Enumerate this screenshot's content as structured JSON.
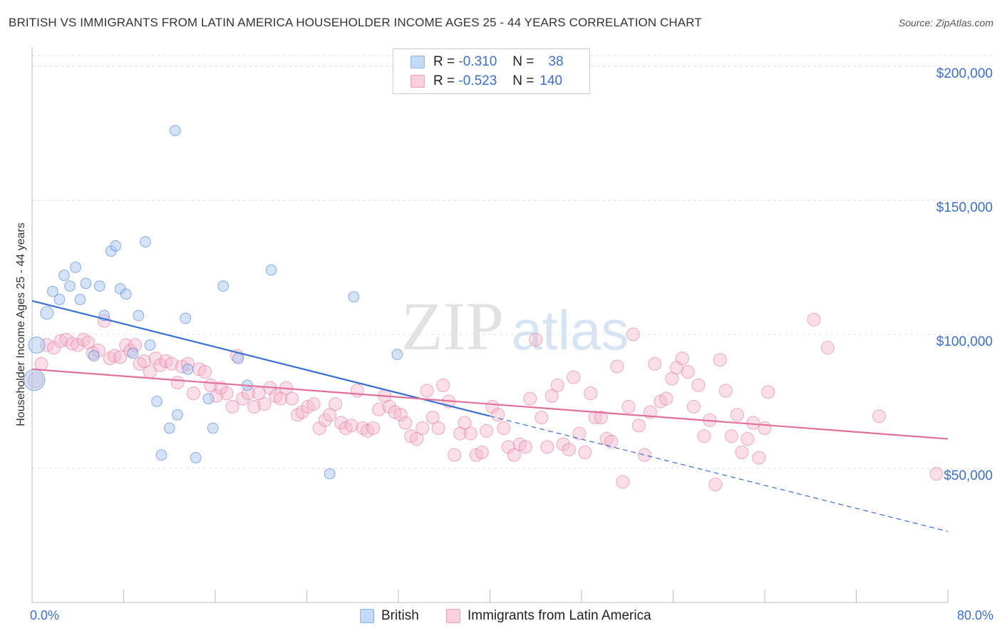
{
  "title": "BRITISH VS IMMIGRANTS FROM LATIN AMERICA HOUSEHOLDER INCOME AGES 25 - 44 YEARS CORRELATION CHART",
  "source": "Source: ZipAtlas.com",
  "watermark": {
    "zip": "ZIP",
    "atlas": "atlas"
  },
  "legend": {
    "rows": [
      {
        "r_label": "R =",
        "r_value": "-0.310",
        "n_label": "N =",
        "n_value": "38",
        "color": "#a9c8f0"
      },
      {
        "r_label": "R =",
        "r_value": "-0.523",
        "n_label": "N =",
        "n_value": "140",
        "color": "#f5b8cc"
      }
    ]
  },
  "bottom_legend": {
    "british": "British",
    "latin": "Immigrants from Latin America"
  },
  "chart_data": {
    "type": "scatter",
    "title": "BRITISH VS IMMIGRANTS FROM LATIN AMERICA HOUSEHOLDER INCOME AGES 25 - 44 YEARS CORRELATION CHART",
    "xlabel": "",
    "ylabel": "Householder Income Ages 25 - 44 years",
    "x_tick_labels": [
      "0.0%",
      "80.0%"
    ],
    "y_tick_labels": [
      "$50,000",
      "$100,000",
      "$150,000",
      "$200,000"
    ],
    "y_ticks": [
      50000,
      100000,
      150000,
      200000
    ],
    "xlim": [
      0,
      80
    ],
    "ylim": [
      0,
      205000
    ],
    "grid": true,
    "legend_position": "top-center",
    "colors": {
      "british": "#3a6fd0",
      "british_fill": "#a9c8f0",
      "latin": "#e0709a",
      "latin_fill": "#f5b8cc"
    },
    "series": [
      {
        "name": "British",
        "trend": {
          "x0": 0,
          "y0": 112500,
          "x1": 40,
          "y1": 69500,
          "dash_to_x": 80,
          "dash_to_y": 26500
        },
        "points": [
          [
            0.2,
            83000,
            18
          ],
          [
            0.4,
            96000,
            14
          ],
          [
            1.3,
            108000,
            11
          ],
          [
            1.8,
            116000,
            9
          ],
          [
            2.4,
            113000,
            9
          ],
          [
            2.8,
            122000,
            9
          ],
          [
            3.3,
            118000,
            9
          ],
          [
            3.8,
            125000,
            9
          ],
          [
            4.2,
            113000,
            9
          ],
          [
            4.7,
            119000,
            9
          ],
          [
            5.4,
            92000,
            9
          ],
          [
            5.9,
            118000,
            9
          ],
          [
            6.3,
            107000,
            9
          ],
          [
            6.9,
            131000,
            9
          ],
          [
            7.3,
            133000,
            9
          ],
          [
            7.7,
            117000,
            9
          ],
          [
            8.2,
            115000,
            9
          ],
          [
            8.8,
            93000,
            9
          ],
          [
            9.3,
            107000,
            9
          ],
          [
            9.9,
            134500,
            9
          ],
          [
            10.3,
            96000,
            9
          ],
          [
            10.9,
            75000,
            9
          ],
          [
            11.3,
            55000,
            9
          ],
          [
            12.0,
            65000,
            9
          ],
          [
            12.5,
            176000,
            9
          ],
          [
            12.7,
            70000,
            9
          ],
          [
            13.4,
            106000,
            9
          ],
          [
            13.6,
            87000,
            9
          ],
          [
            14.3,
            54000,
            9
          ],
          [
            15.4,
            76000,
            9
          ],
          [
            15.8,
            65000,
            9
          ],
          [
            16.7,
            118000,
            9
          ],
          [
            18.0,
            91000,
            9
          ],
          [
            18.8,
            81000,
            9
          ],
          [
            20.9,
            124000,
            9
          ],
          [
            26.0,
            48000,
            9
          ],
          [
            28.1,
            114000,
            9
          ],
          [
            31.9,
            92500,
            9
          ]
        ]
      },
      {
        "name": "Immigrants from Latin America",
        "trend": {
          "x0": 0,
          "y0": 87000,
          "x1": 80,
          "y1": 61000
        },
        "points": [
          [
            0.3,
            83000,
            13
          ],
          [
            0.8,
            89000,
            11
          ],
          [
            1.3,
            96000,
            11
          ],
          [
            1.9,
            95000,
            11
          ],
          [
            2.5,
            97500,
            11
          ],
          [
            3.0,
            98000,
            11
          ],
          [
            3.5,
            96500,
            11
          ],
          [
            4.0,
            96000,
            11
          ],
          [
            4.5,
            98000,
            11
          ],
          [
            4.9,
            97000,
            11
          ],
          [
            5.3,
            93000,
            11
          ],
          [
            5.8,
            94000,
            11
          ],
          [
            6.3,
            105000,
            11
          ],
          [
            6.8,
            91000,
            11
          ],
          [
            7.2,
            92000,
            11
          ],
          [
            7.7,
            91500,
            11
          ],
          [
            8.2,
            96000,
            11
          ],
          [
            8.6,
            94000,
            11
          ],
          [
            9.0,
            96000,
            11
          ],
          [
            9.4,
            89000,
            11
          ],
          [
            9.8,
            90000,
            11
          ],
          [
            10.3,
            86000,
            11
          ],
          [
            10.8,
            91000,
            11
          ],
          [
            11.2,
            88500,
            11
          ],
          [
            11.7,
            90000,
            11
          ],
          [
            12.2,
            89000,
            11
          ],
          [
            12.7,
            82000,
            11
          ],
          [
            13.1,
            88000,
            11
          ],
          [
            13.6,
            89000,
            11
          ],
          [
            14.1,
            78000,
            11
          ],
          [
            14.6,
            87000,
            11
          ],
          [
            15.1,
            86000,
            11
          ],
          [
            15.6,
            81000,
            11
          ],
          [
            16.1,
            77000,
            11
          ],
          [
            16.5,
            80000,
            11
          ],
          [
            17.0,
            78000,
            11
          ],
          [
            17.5,
            73000,
            11
          ],
          [
            17.9,
            92000,
            11
          ],
          [
            18.4,
            76000,
            11
          ],
          [
            18.9,
            78000,
            11
          ],
          [
            19.4,
            73000,
            11
          ],
          [
            19.8,
            78000,
            11
          ],
          [
            20.3,
            74000,
            11
          ],
          [
            20.8,
            80000,
            11
          ],
          [
            21.3,
            77000,
            11
          ],
          [
            21.7,
            76000,
            11
          ],
          [
            22.2,
            80000,
            11
          ],
          [
            22.7,
            76000,
            11
          ],
          [
            23.2,
            70000,
            11
          ],
          [
            23.6,
            71000,
            11
          ],
          [
            24.1,
            73000,
            11
          ],
          [
            24.6,
            74000,
            11
          ],
          [
            25.1,
            65000,
            11
          ],
          [
            25.6,
            68000,
            11
          ],
          [
            26.0,
            70000,
            11
          ],
          [
            26.5,
            74000,
            11
          ],
          [
            27.0,
            67000,
            11
          ],
          [
            27.4,
            65000,
            11
          ],
          [
            27.9,
            66000,
            11
          ],
          [
            28.4,
            79000,
            11
          ],
          [
            28.9,
            65000,
            11
          ],
          [
            29.3,
            64000,
            11
          ],
          [
            29.8,
            65000,
            11
          ],
          [
            30.3,
            72000,
            11
          ],
          [
            30.8,
            77000,
            11
          ],
          [
            31.2,
            73000,
            11
          ],
          [
            31.7,
            71000,
            11
          ],
          [
            32.2,
            70000,
            11
          ],
          [
            32.6,
            67000,
            11
          ],
          [
            33.1,
            62000,
            11
          ],
          [
            33.6,
            61000,
            11
          ],
          [
            34.1,
            65000,
            11
          ],
          [
            34.5,
            79000,
            11
          ],
          [
            35.0,
            69000,
            11
          ],
          [
            35.5,
            65000,
            11
          ],
          [
            35.9,
            81000,
            11
          ],
          [
            36.4,
            75000,
            11
          ],
          [
            36.9,
            55000,
            11
          ],
          [
            37.4,
            63000,
            11
          ],
          [
            37.8,
            67000,
            11
          ],
          [
            38.3,
            63000,
            11
          ],
          [
            38.8,
            55000,
            11
          ],
          [
            39.3,
            56000,
            11
          ],
          [
            39.7,
            64000,
            11
          ],
          [
            40.2,
            73000,
            11
          ],
          [
            40.7,
            70000,
            11
          ],
          [
            41.2,
            65000,
            11
          ],
          [
            41.6,
            58000,
            11
          ],
          [
            42.1,
            55000,
            11
          ],
          [
            42.6,
            59000,
            11
          ],
          [
            43.1,
            58000,
            11
          ],
          [
            43.5,
            76000,
            11
          ],
          [
            44.0,
            98000,
            11
          ],
          [
            44.5,
            69000,
            11
          ],
          [
            45.0,
            58000,
            11
          ],
          [
            45.4,
            77000,
            11
          ],
          [
            45.9,
            81000,
            11
          ],
          [
            46.4,
            59000,
            11
          ],
          [
            46.9,
            57000,
            11
          ],
          [
            47.3,
            84000,
            11
          ],
          [
            47.8,
            63000,
            11
          ],
          [
            48.3,
            56000,
            11
          ],
          [
            48.8,
            78000,
            11
          ],
          [
            49.2,
            69000,
            11
          ],
          [
            49.7,
            69000,
            11
          ],
          [
            50.2,
            61000,
            11
          ],
          [
            50.6,
            60000,
            11
          ],
          [
            51.1,
            88000,
            11
          ],
          [
            51.6,
            45000,
            11
          ],
          [
            52.1,
            73000,
            11
          ],
          [
            52.5,
            100000,
            11
          ],
          [
            53.0,
            66000,
            11
          ],
          [
            53.5,
            55000,
            11
          ],
          [
            54.0,
            71000,
            11
          ],
          [
            54.4,
            89000,
            11
          ],
          [
            54.9,
            75000,
            11
          ],
          [
            55.4,
            76000,
            11
          ],
          [
            55.9,
            83500,
            11
          ],
          [
            56.3,
            87500,
            11
          ],
          [
            56.8,
            91000,
            11
          ],
          [
            57.3,
            86000,
            11
          ],
          [
            57.8,
            73000,
            11
          ],
          [
            58.2,
            81000,
            11
          ],
          [
            58.7,
            62000,
            11
          ],
          [
            59.2,
            68000,
            11
          ],
          [
            59.7,
            44000,
            11
          ],
          [
            60.1,
            90500,
            11
          ],
          [
            60.6,
            79000,
            11
          ],
          [
            61.1,
            62000,
            11
          ],
          [
            61.6,
            70000,
            11
          ],
          [
            62.0,
            56000,
            11
          ],
          [
            62.5,
            61000,
            11
          ],
          [
            63.0,
            67000,
            11
          ],
          [
            63.5,
            54000,
            11
          ],
          [
            64.3,
            78500,
            11
          ],
          [
            68.3,
            105500,
            11
          ],
          [
            69.5,
            95000,
            11
          ],
          [
            74.0,
            69500,
            11
          ],
          [
            79.0,
            48000,
            11
          ],
          [
            64.0,
            65000,
            11
          ]
        ]
      }
    ]
  }
}
